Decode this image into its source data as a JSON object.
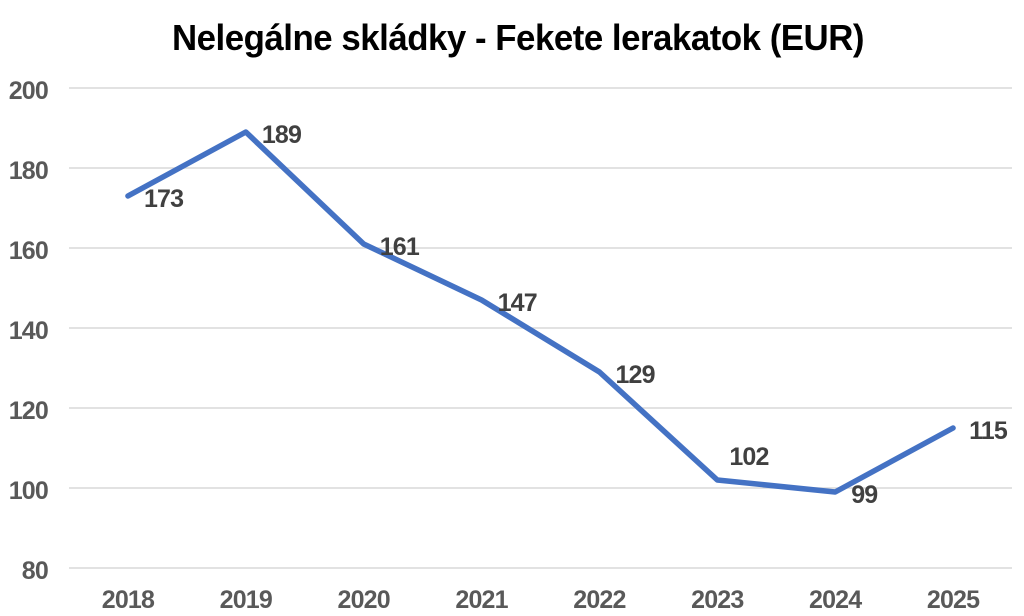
{
  "chart_data": {
    "type": "line",
    "title": "Nelegálne skládky - Fekete lerakatok (EUR)",
    "categories": [
      "2018",
      "2019",
      "2020",
      "2021",
      "2022",
      "2023",
      "2024",
      "2025"
    ],
    "series": [
      {
        "name": "Fekete lerakatok (EUR)",
        "values": [
          173,
          189,
          161,
          147,
          129,
          102,
          99,
          115
        ]
      }
    ],
    "data_labels": [
      "173",
      "189",
      "161",
      "147",
      "129",
      "102",
      "99",
      "115"
    ],
    "data_label_positions": [
      "right",
      "right",
      "right",
      "right",
      "right",
      "above-right",
      "right",
      "right"
    ],
    "xlabel": "",
    "ylabel": "",
    "ylim": [
      80,
      200
    ],
    "ytick_step": 20,
    "ytick_labels": [
      "80",
      "100",
      "120",
      "140",
      "160",
      "180",
      "200"
    ],
    "grid": true,
    "legend": "none",
    "colors": {
      "line": "#4472c4",
      "gridline": "#d9d9d9",
      "title_text": "#4d4d4d",
      "axis_text": "#595959",
      "data_label_text": "#404040",
      "background": "#ffffff"
    }
  }
}
